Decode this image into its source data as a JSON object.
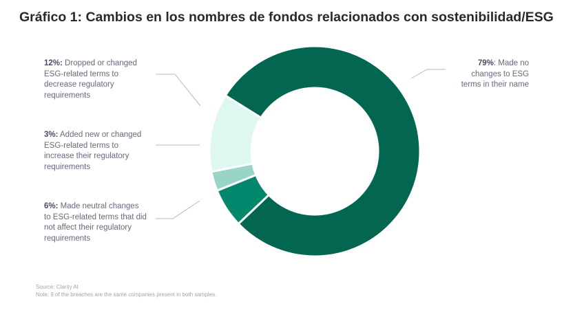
{
  "chart_data": {
    "type": "pie",
    "variant": "donut",
    "title": "Gráfico 1: Cambios en los nombres de fondos relacionados con sostenibilidad/ESG",
    "slices": [
      {
        "value": 79,
        "pct_label": "79%",
        "text": ": Made no changes to ESG terms in their name",
        "color": "#026650"
      },
      {
        "value": 6,
        "pct_label": "6%:",
        "text": " Made neutral changes to ESG-related terms that did not affect their regulatory requirements",
        "color": "#03886e"
      },
      {
        "value": 3,
        "pct_label": "3%:",
        "text": " Added new or changed ESG-related terms to increase their regulatory requirements",
        "color": "#98d5c6"
      },
      {
        "value": 12,
        "pct_label": "12%:",
        "text": " Dropped or changed ESG-related terms to decrease regulatory requirements",
        "color": "#dff7f1"
      }
    ],
    "source": "Source: Clarity AI",
    "note": "Note: 9 of the breaches are the same companies present in both samples."
  }
}
